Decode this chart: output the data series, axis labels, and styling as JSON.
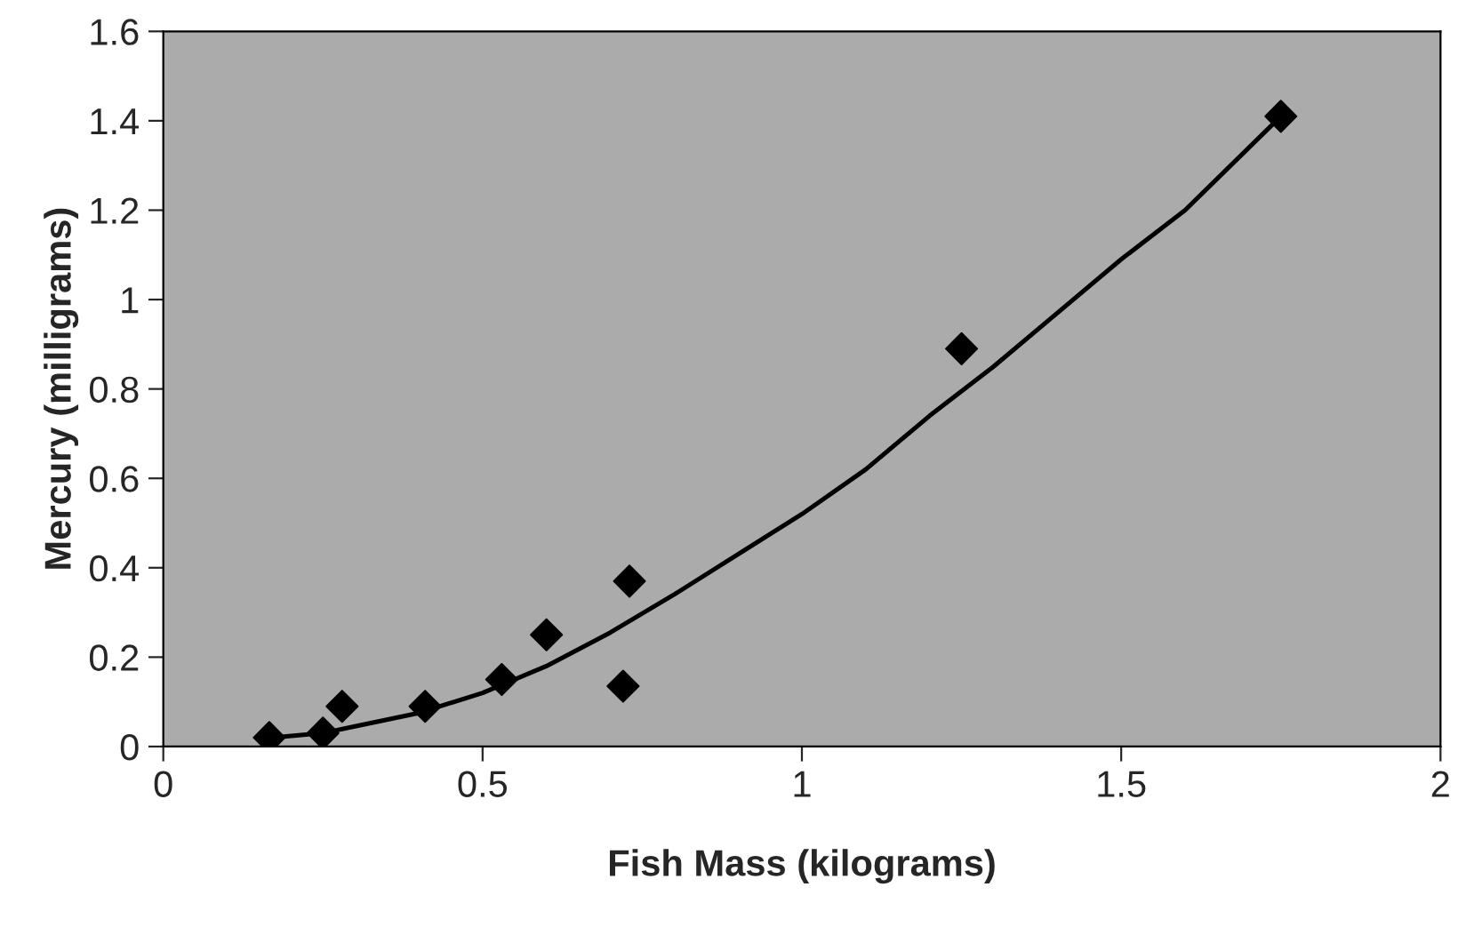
{
  "chart_data": {
    "type": "scatter",
    "xlabel": "Fish Mass (kilograms)",
    "ylabel": "Mercury (milligrams)",
    "series": [
      {
        "color": "#000000",
        "marker": "diamond",
        "x": [
          0.166,
          0.25,
          0.28,
          0.41,
          0.53,
          0.6,
          0.72,
          0.73,
          1.25,
          1.75
        ],
        "values": [
          0.02,
          0.03,
          0.09,
          0.09,
          0.15,
          0.25,
          0.135,
          0.37,
          0.89,
          1.41
        ]
      },
      {
        "type": "line",
        "color": "#000000",
        "marker": "none",
        "x": [
          0.17,
          0.25,
          0.3,
          0.4,
          0.5,
          0.6,
          0.7,
          0.8,
          0.9,
          1.0,
          1.1,
          1.2,
          1.3,
          1.4,
          1.5,
          1.6,
          1.75
        ],
        "values": [
          0.02,
          0.03,
          0.045,
          0.075,
          0.12,
          0.18,
          0.255,
          0.34,
          0.43,
          0.52,
          0.62,
          0.74,
          0.85,
          0.97,
          1.09,
          1.2,
          1.41
        ]
      }
    ],
    "xlim": [
      0,
      2
    ],
    "xticks": [
      0,
      0.5,
      1,
      1.5,
      2
    ],
    "ylim": [
      0,
      1.6
    ],
    "yticks": [
      0,
      0.2,
      0.4,
      0.6,
      0.8,
      1,
      1.2,
      1.4,
      1.6
    ],
    "grid": false,
    "legend": false
  }
}
